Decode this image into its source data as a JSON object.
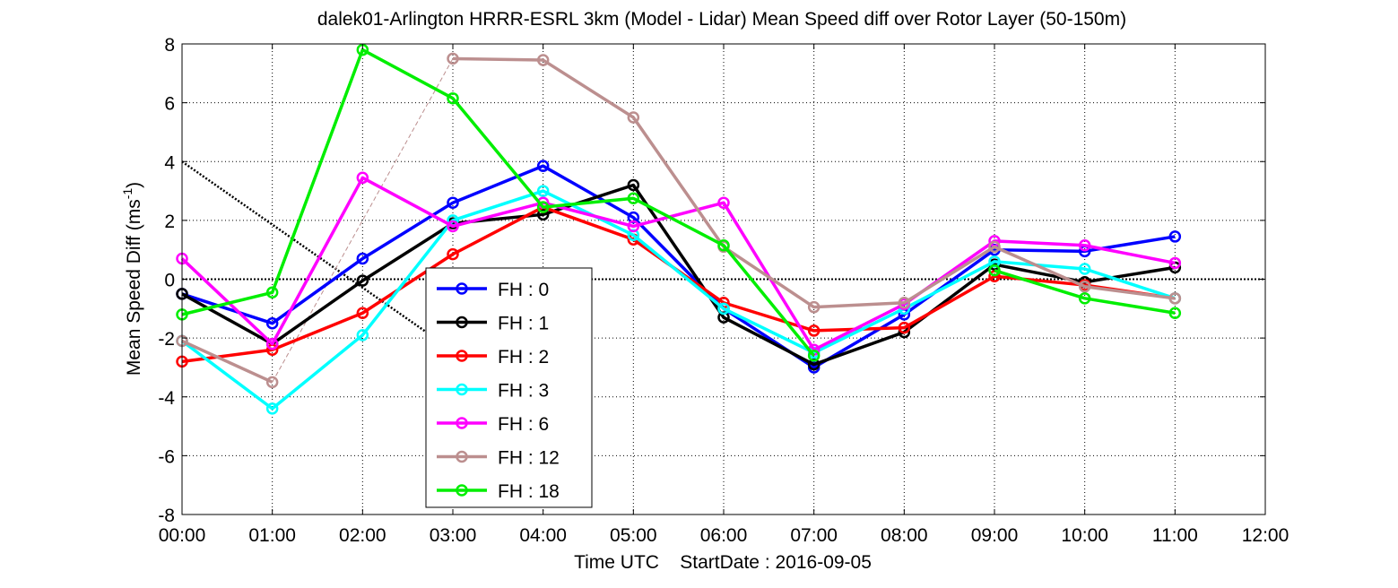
{
  "chart_data": {
    "type": "line",
    "title": "dalek01-Arlington HRRR-ESRL 3km (Model - Lidar) Mean Speed diff over Rotor Layer (50-150m)",
    "xlabel": "Time UTC    StartDate : 2016-09-05",
    "ylabel_main": "Mean Speed Diff (ms",
    "ylabel_sup": "-1",
    "ylabel_end": ")",
    "x_ticks": [
      "00:00",
      "01:00",
      "02:00",
      "03:00",
      "04:00",
      "05:00",
      "06:00",
      "07:00",
      "08:00",
      "09:00",
      "10:00",
      "11:00",
      "12:00"
    ],
    "y_ticks": [
      "-8",
      "-6",
      "-4",
      "-2",
      "0",
      "2",
      "4",
      "6",
      "8"
    ],
    "xlim": [
      0,
      12
    ],
    "ylim": [
      -8,
      8
    ],
    "grid": true,
    "legend_position": "center-left",
    "series": [
      {
        "name": "FH : 0",
        "color": "#0000ff",
        "x": [
          0,
          1,
          2,
          3,
          4,
          5,
          6,
          7,
          8,
          9,
          10,
          11
        ],
        "values": [
          -0.5,
          -1.5,
          0.7,
          2.6,
          3.85,
          2.1,
          -1.0,
          -3.0,
          -1.2,
          1.0,
          0.95,
          1.45
        ]
      },
      {
        "name": "FH : 1",
        "color": "#000000",
        "x": [
          0,
          1,
          2,
          3,
          4,
          5,
          6,
          7,
          8,
          9,
          10,
          11
        ],
        "values": [
          -0.5,
          -2.2,
          -0.05,
          1.9,
          2.2,
          3.2,
          -1.3,
          -2.9,
          -1.8,
          0.5,
          -0.1,
          0.4
        ]
      },
      {
        "name": "FH : 2",
        "color": "#ff0000",
        "x": [
          0,
          1,
          2,
          3,
          4,
          5,
          6,
          7,
          8,
          9,
          10,
          11
        ],
        "values": [
          -2.8,
          -2.4,
          -1.15,
          0.85,
          2.45,
          1.35,
          -0.8,
          -1.75,
          -1.65,
          0.1,
          -0.2,
          -0.65
        ]
      },
      {
        "name": "FH : 3",
        "color": "#00ffff",
        "x": [
          0,
          1,
          2,
          3,
          4,
          5,
          6,
          7,
          8,
          9,
          10,
          11
        ],
        "values": [
          -2.1,
          -4.4,
          -1.9,
          2.0,
          3.0,
          1.5,
          -1.0,
          -2.5,
          -1.0,
          0.6,
          0.35,
          -0.65
        ]
      },
      {
        "name": "FH : 6",
        "color": "#ff00ff",
        "x": [
          0,
          1,
          2,
          3,
          4,
          5,
          6,
          7,
          8,
          9,
          10,
          11
        ],
        "values": [
          0.7,
          -2.2,
          3.45,
          1.8,
          2.6,
          1.8,
          2.6,
          -2.4,
          -0.85,
          1.3,
          1.15,
          0.55
        ]
      },
      {
        "name": "FH : 12",
        "color": "#bc8f8f",
        "x": [
          0,
          1,
          2,
          3,
          4,
          5,
          6,
          7,
          8,
          9,
          10,
          11
        ],
        "values": [
          -2.1,
          -3.5,
          null,
          7.5,
          7.45,
          5.5,
          1.1,
          -0.95,
          -0.8,
          1.1,
          -0.25,
          -0.65
        ]
      },
      {
        "name": "FH : 18",
        "color": "#00ee00",
        "x": [
          0,
          1,
          2,
          3,
          4,
          5,
          6,
          7,
          8,
          9,
          10,
          11
        ],
        "values": [
          -1.2,
          -0.45,
          7.8,
          6.15,
          2.45,
          2.75,
          1.15,
          -2.6,
          null,
          0.3,
          -0.65,
          -1.15
        ]
      }
    ]
  }
}
